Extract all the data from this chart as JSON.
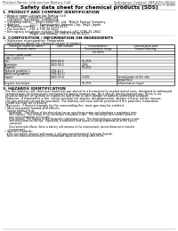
{
  "bg_color": "#ffffff",
  "header_left": "Product Name: Lithium Ion Battery Cell",
  "header_right_line1": "Substance Control: 5BK-SDS-00010",
  "header_right_line2": "Established / Revision: Dec.7.2009",
  "title": "Safety data sheet for chemical products (SDS)",
  "section1_title": "1. PRODUCT AND COMPANY IDENTIFICATION",
  "section1_lines": [
    "• Product name: Lithium Ion Battery Cell",
    "• Product code: Cylindrical-type cell",
    "   ISR18650, ISR18650L, ISR18650A",
    "• Company name:    Itochu Enex Co., Ltd.  Mobile Energy Company",
    "• Address:          2/2-1  Kamiitabashi, Itabashi-City, Tokyo, Japan",
    "• Telephone number:   +81-3795-25-4111",
    "• Fax number:   +81-3-796-26-4121",
    "• Emergency telephone number (Weekdays) +81-3796-25-2662",
    "                         (Night and holiday) +81-3-796-26-4121"
  ],
  "section2_title": "2. COMPOSITION / INFORMATION ON INGREDIENTS",
  "section2_sub1": "• Substance or preparation: Preparation",
  "section2_sub2": "• Information about the chemical nature of product:",
  "col_headers_row1": [
    "Chemical chemical name /",
    "CAS number",
    "Concentration /",
    "Classification and"
  ],
  "col_headers_row2": [
    "Generic name",
    "",
    "Concentration range",
    "hazard labeling"
  ],
  "col_headers_row3": [
    "",
    "",
    "(50-80%)",
    ""
  ],
  "table_rows": [
    [
      "Lithium cobalt oxide",
      "-",
      "-",
      "-"
    ],
    [
      "(LiMn-CoO2(Li))",
      "",
      "",
      ""
    ],
    [
      "Iron",
      "7439-89-6",
      "16-25%",
      "-"
    ],
    [
      "Aluminum",
      "7429-90-5",
      "2-6%",
      "-"
    ],
    [
      "Graphite",
      "",
      "10-25%",
      ""
    ],
    [
      "(Natural graphite-1",
      "7782-42-5",
      "",
      ""
    ],
    [
      "(Artificial graphite)",
      "7782-42-5)",
      "",
      ""
    ],
    [
      "Copper",
      "7440-50-8",
      "5-10%",
      "Sensitization of the skin"
    ],
    [
      "",
      "",
      "",
      "group No.2"
    ],
    [
      "Organic electrolyte",
      "-",
      "10-25%",
      "Inflammation liquid"
    ]
  ],
  "section3_title": "3. HAZARDS IDENTIFICATION",
  "section3_body": [
    "   For this battery cell, chemical materials are stored in a hermetically-sealed metal case, designed to withstand",
    "   temperatures and pressures encountered during normal use. As a result, during normal use, there is no",
    "   physical danger of ignition or explosion and there is little danger of battery electrolyte leakage.",
    "   However, if exposed to a fire, active mechanical shocks, decompression, written electric refuse misuse,",
    "   the gas release cannot be operated. The battery cell case will be practiced if the particles, hazardous",
    "   materials may be released.",
    "   Moreover, if heated strongly by the surrounding fire, toxic gas may be emitted."
  ],
  "hazards_title": "• Most important hazard and effects:",
  "hazards_lines": [
    "   Human health effects:",
    "      Inhalation:  The release of the electrolyte has an anesthesia action and stimulates a respiratory tract.",
    "      Skin contact:  The release of the electrolyte stimulates a skin.  The electrolyte skin contact causes a",
    "      sore and stimulation on the skin.",
    "      Eye contact:  The release of the electrolyte stimulates eyes.  The electrolyte eye contact causes a sore",
    "      and stimulation on the eye.  Especially, a substance that causes a strong inflammation of the eyes is",
    "      contained.",
    "",
    "      Environmental effects: Since a battery cell remains in the environment, do not throw out it into the",
    "      environment."
  ],
  "specific_title": "• Specific hazards:",
  "specific_lines": [
    "   If the electrolyte contacts with water, it will generate detrimental hydrogen fluoride.",
    "   Since the lead-acid electrolyte is inflammable liquid, do not bring close to fire."
  ]
}
